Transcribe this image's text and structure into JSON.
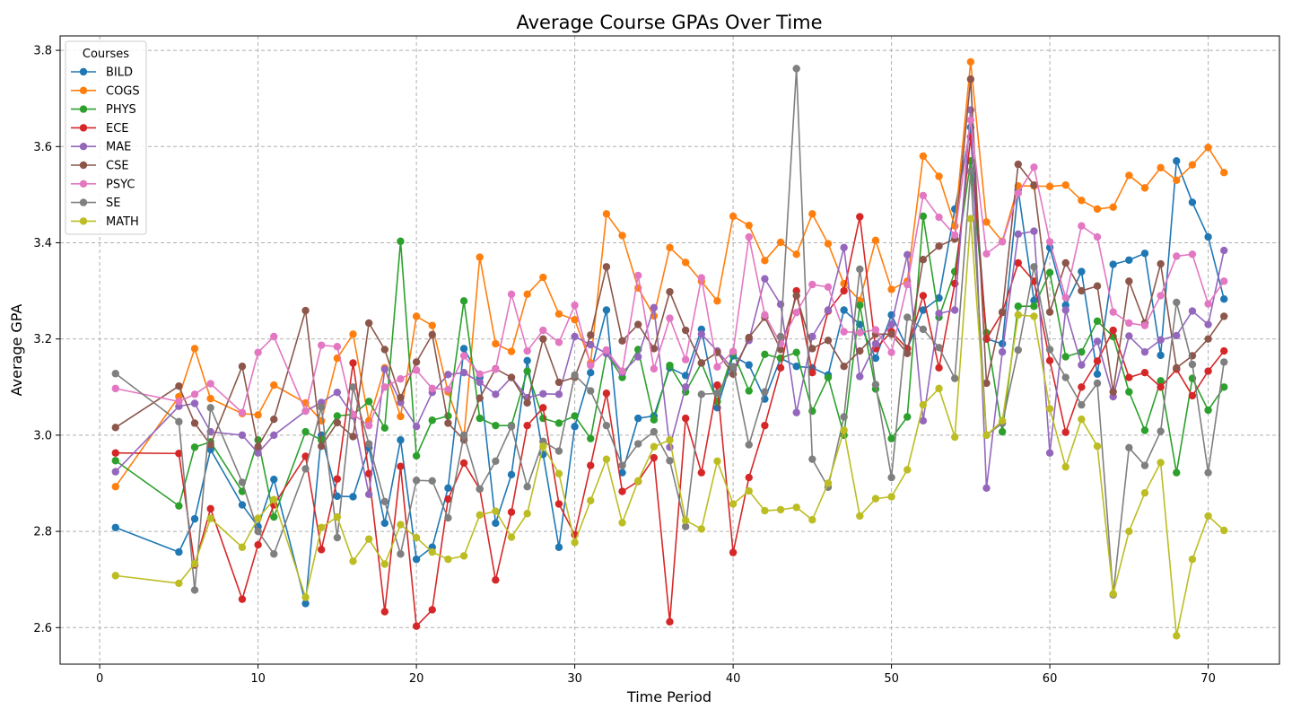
{
  "chart_data": {
    "type": "line",
    "title": "Average Course GPAs Over Time",
    "xlabel": "Time Period",
    "ylabel": "Average GPA",
    "xlim": [
      -2.5,
      74.5
    ],
    "ylim": [
      2.524,
      3.83
    ],
    "xticks": [
      0,
      10,
      20,
      30,
      40,
      50,
      60,
      70
    ],
    "yticks": [
      2.6,
      2.8,
      3.0,
      3.2,
      3.4,
      3.6,
      3.8
    ],
    "ytick_labels": [
      "2.6",
      "2.8",
      "3.0",
      "3.2",
      "3.4",
      "3.6",
      "3.8"
    ],
    "grid": true,
    "legend": {
      "title": "Courses",
      "position": "top-left"
    },
    "x": [
      1,
      5,
      6,
      7,
      9,
      10,
      11,
      13,
      14,
      15,
      16,
      17,
      18,
      19,
      20,
      21,
      22,
      23,
      24,
      25,
      26,
      27,
      28,
      29,
      30,
      31,
      32,
      33,
      34,
      35,
      36,
      37,
      38,
      39,
      40,
      41,
      42,
      43,
      44,
      45,
      46,
      47,
      48,
      49,
      50,
      51,
      52,
      53,
      54,
      55,
      56,
      57,
      58,
      59,
      60,
      61,
      62,
      63,
      64,
      65,
      66,
      67,
      68,
      69,
      70,
      71
    ],
    "series": [
      {
        "name": "BILD",
        "color": "#1f77b4",
        "values": [
          2.808,
          2.757,
          2.826,
          2.97,
          2.855,
          2.81,
          2.908,
          2.65,
          3.0,
          2.873,
          2.872,
          2.974,
          2.817,
          2.99,
          2.742,
          2.767,
          2.89,
          3.18,
          3.12,
          2.817,
          2.918,
          3.155,
          2.96,
          2.767,
          3.018,
          3.13,
          3.26,
          2.922,
          3.035,
          3.04,
          3.14,
          3.124,
          3.22,
          3.057,
          3.165,
          3.146,
          3.075,
          3.16,
          3.143,
          3.14,
          3.125,
          3.26,
          3.23,
          3.16,
          3.25,
          3.18,
          3.26,
          3.285,
          3.47,
          3.64,
          3.2,
          3.19,
          3.51,
          3.28,
          3.39,
          3.27,
          3.34,
          3.127,
          3.355,
          3.364,
          3.378,
          3.166,
          3.57,
          3.484,
          3.412,
          3.283
        ]
      },
      {
        "name": "COGS",
        "color": "#ff7f0e",
        "values": [
          2.893,
          3.08,
          3.18,
          3.076,
          3.045,
          3.042,
          3.104,
          3.067,
          3.03,
          3.16,
          3.21,
          3.03,
          3.14,
          3.039,
          3.247,
          3.228,
          3.09,
          2.995,
          3.37,
          3.19,
          3.174,
          3.293,
          3.328,
          3.252,
          3.24,
          3.15,
          3.46,
          3.415,
          3.306,
          3.248,
          3.39,
          3.359,
          3.32,
          3.279,
          3.455,
          3.436,
          3.363,
          3.401,
          3.376,
          3.46,
          3.398,
          3.315,
          3.28,
          3.405,
          3.303,
          3.32,
          3.58,
          3.538,
          3.435,
          3.776,
          3.443,
          3.403,
          3.518,
          3.518,
          3.517,
          3.52,
          3.488,
          3.47,
          3.474,
          3.54,
          3.514,
          3.556,
          3.53,
          3.562,
          3.598,
          3.546
        ]
      },
      {
        "name": "PHYS",
        "color": "#2ca02c",
        "values": [
          2.947,
          2.853,
          2.975,
          2.986,
          2.883,
          2.99,
          2.83,
          3.007,
          2.99,
          3.04,
          3.043,
          3.07,
          3.015,
          3.403,
          2.957,
          3.031,
          3.04,
          3.279,
          3.035,
          3.02,
          3.02,
          3.133,
          3.035,
          3.025,
          3.04,
          2.993,
          3.17,
          3.12,
          3.178,
          3.032,
          3.145,
          3.09,
          3.15,
          3.07,
          3.172,
          3.092,
          3.168,
          3.16,
          3.172,
          3.05,
          3.12,
          3.0,
          3.27,
          3.096,
          2.993,
          3.038,
          3.455,
          3.245,
          3.34,
          3.57,
          3.213,
          3.007,
          3.268,
          3.268,
          3.338,
          3.163,
          3.173,
          3.237,
          3.205,
          3.09,
          3.01,
          3.113,
          2.922,
          3.118,
          3.052,
          3.1
        ]
      },
      {
        "name": "ECE",
        "color": "#d62728",
        "values": [
          2.963,
          2.962,
          2.73,
          2.847,
          2.659,
          2.772,
          2.855,
          2.956,
          2.762,
          2.909,
          3.15,
          2.92,
          2.633,
          2.935,
          2.603,
          2.637,
          2.867,
          2.942,
          2.888,
          2.699,
          2.84,
          3.02,
          3.057,
          2.857,
          2.793,
          2.937,
          3.087,
          2.883,
          2.904,
          2.953,
          2.612,
          3.035,
          2.922,
          3.104,
          2.756,
          2.912,
          3.02,
          3.14,
          3.3,
          3.13,
          3.258,
          3.3,
          3.454,
          3.18,
          3.215,
          3.18,
          3.29,
          3.14,
          3.315,
          3.62,
          3.2,
          3.255,
          3.358,
          3.32,
          3.155,
          3.006,
          3.1,
          3.154,
          3.218,
          3.12,
          3.13,
          3.1,
          3.137,
          3.082,
          3.133,
          3.175
        ]
      },
      {
        "name": "MAE",
        "color": "#9467bd",
        "values": [
          2.924,
          3.06,
          3.066,
          3.007,
          3.0,
          2.963,
          3.0,
          3.05,
          3.068,
          3.089,
          3.04,
          2.877,
          3.137,
          3.068,
          3.018,
          3.089,
          3.126,
          3.13,
          3.11,
          3.085,
          3.12,
          3.078,
          3.086,
          3.085,
          3.205,
          3.188,
          3.17,
          3.13,
          3.163,
          3.265,
          2.975,
          3.1,
          3.21,
          3.175,
          3.137,
          3.197,
          3.325,
          3.272,
          3.047,
          3.205,
          3.26,
          3.39,
          3.122,
          3.19,
          3.23,
          3.375,
          3.03,
          3.253,
          3.26,
          3.676,
          2.89,
          3.173,
          3.418,
          3.424,
          2.963,
          3.26,
          3.146,
          3.195,
          3.08,
          3.206,
          3.173,
          3.198,
          3.207,
          3.258,
          3.23,
          3.384
        ]
      },
      {
        "name": "CSE",
        "color": "#8c564b",
        "values": [
          3.016,
          3.102,
          3.025,
          2.98,
          3.143,
          2.976,
          3.033,
          3.259,
          2.977,
          3.026,
          2.997,
          3.233,
          3.178,
          3.078,
          3.152,
          3.209,
          3.025,
          2.99,
          3.077,
          3.138,
          3.12,
          3.067,
          3.2,
          3.11,
          3.12,
          3.208,
          3.35,
          3.196,
          3.23,
          3.18,
          3.298,
          3.218,
          3.15,
          3.172,
          3.127,
          3.203,
          3.245,
          3.178,
          3.29,
          3.18,
          3.197,
          3.143,
          3.175,
          3.21,
          3.21,
          3.17,
          3.365,
          3.393,
          3.408,
          3.74,
          3.108,
          3.256,
          3.563,
          3.52,
          3.256,
          3.358,
          3.3,
          3.31,
          3.09,
          3.32,
          3.233,
          3.356,
          3.14,
          3.165,
          3.2,
          3.247
        ]
      },
      {
        "name": "PSYC",
        "color": "#e377c2",
        "values": [
          3.097,
          3.07,
          3.085,
          3.107,
          3.047,
          3.172,
          3.205,
          3.05,
          3.187,
          3.184,
          3.043,
          3.02,
          3.1,
          3.117,
          3.135,
          3.097,
          3.095,
          3.165,
          3.127,
          3.137,
          3.293,
          3.175,
          3.218,
          3.193,
          3.27,
          3.145,
          3.177,
          3.133,
          3.332,
          3.138,
          3.243,
          3.157,
          3.327,
          3.142,
          3.174,
          3.412,
          3.25,
          3.19,
          3.255,
          3.313,
          3.308,
          3.215,
          3.213,
          3.219,
          3.172,
          3.313,
          3.498,
          3.453,
          3.416,
          3.655,
          3.377,
          3.402,
          3.503,
          3.557,
          3.402,
          3.286,
          3.435,
          3.412,
          3.256,
          3.233,
          3.228,
          3.29,
          3.372,
          3.376,
          3.273,
          3.32
        ]
      },
      {
        "name": "SE",
        "color": "#7f7f7f",
        "values": [
          3.128,
          3.028,
          2.678,
          3.057,
          2.902,
          2.8,
          2.753,
          2.93,
          3.058,
          2.787,
          3.1,
          2.982,
          2.862,
          2.753,
          2.906,
          2.905,
          2.828,
          3.0,
          2.888,
          2.946,
          3.018,
          2.893,
          2.987,
          2.967,
          3.125,
          3.092,
          3.02,
          2.937,
          2.982,
          3.007,
          2.947,
          2.81,
          3.085,
          3.087,
          3.142,
          2.98,
          3.09,
          3.205,
          3.762,
          2.95,
          2.892,
          3.038,
          3.345,
          3.105,
          2.912,
          3.245,
          3.22,
          3.182,
          3.118,
          3.548,
          3.0,
          3.025,
          3.177,
          3.35,
          3.178,
          3.12,
          3.063,
          3.108,
          2.668,
          2.974,
          2.937,
          3.008,
          3.276,
          3.147,
          2.922,
          3.152
        ]
      },
      {
        "name": "MATH",
        "color": "#bcbd22",
        "values": [
          2.708,
          2.692,
          2.733,
          2.827,
          2.767,
          2.827,
          2.866,
          2.663,
          2.808,
          2.83,
          2.738,
          2.784,
          2.732,
          2.814,
          2.787,
          2.757,
          2.742,
          2.749,
          2.834,
          2.842,
          2.788,
          2.837,
          2.977,
          2.92,
          2.777,
          2.864,
          2.95,
          2.818,
          2.905,
          2.976,
          2.99,
          2.823,
          2.805,
          2.946,
          2.857,
          2.884,
          2.843,
          2.845,
          2.85,
          2.824,
          2.9,
          3.01,
          2.832,
          2.868,
          2.872,
          2.928,
          3.063,
          3.097,
          2.996,
          3.45,
          3.0,
          3.03,
          3.25,
          3.247,
          3.055,
          2.934,
          3.033,
          2.977,
          2.67,
          2.8,
          2.88,
          2.943,
          2.583,
          2.742,
          2.832,
          2.802
        ]
      }
    ]
  }
}
